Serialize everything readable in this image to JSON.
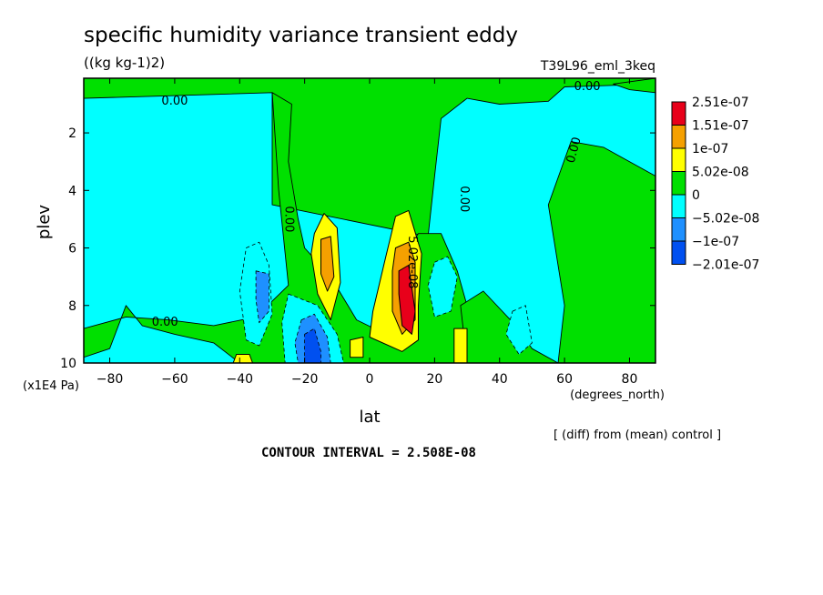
{
  "chart_data": {
    "type": "heatmap",
    "title": "specific humidity variance transient eddy",
    "subtitle": "((kg kg-1)2)",
    "run_label": "T39L96_eml_3keq",
    "xlabel": "lat",
    "xunits": "(degrees_north)",
    "ylabel": "plev",
    "yunits": "(x1E4 Pa)",
    "xlim": [
      -88,
      88
    ],
    "ylim": [
      10,
      0.1
    ],
    "x_ticks": [
      -80,
      -60,
      -40,
      -20,
      0,
      20,
      40,
      60,
      80
    ],
    "y_ticks": [
      2,
      4,
      6,
      8,
      10
    ],
    "x_tick_labels": [
      "−80",
      "−60",
      "−40",
      "−20",
      "0",
      "20",
      "40",
      "60",
      "80"
    ],
    "y_tick_labels": [
      "2",
      "4",
      "6",
      "8",
      "10"
    ],
    "contour_labels": [
      {
        "text": "0.00",
        "x": -60,
        "y": 0.9
      },
      {
        "text": "0.00",
        "x": 67,
        "y": 0.4
      },
      {
        "text": "0.00",
        "x": 63,
        "y": 2.6
      },
      {
        "text": "0.00",
        "x": 29,
        "y": 4.3
      },
      {
        "text": "0.00",
        "x": -25,
        "y": 5.0
      },
      {
        "text": "0.00",
        "x": -63,
        "y": 8.6
      },
      {
        "text": "5.02e-08",
        "x": 13,
        "y": 6.5
      }
    ],
    "legend": {
      "placement": "right",
      "colors": [
        "#e8001a",
        "#f5a000",
        "#ffff00",
        "#00e000",
        "#00ffff",
        "#1e90ff",
        "#0050f0"
      ],
      "labels": [
        "2.51e-07",
        "1.51e-07",
        "1e-07",
        "5.02e-08",
        "0",
        "−5.02e-08",
        "−1e-07",
        "−2.01e-07"
      ]
    },
    "footer_note": "[ (diff) from (mean) control ]",
    "contour_interval": "CONTOUR INTERVAL = 2.508E-08",
    "regions": [
      {
        "level": 0,
        "points": [
          [
            -88,
            10
          ],
          [
            -88,
            0.1
          ],
          [
            88,
            0.1
          ],
          [
            88,
            10
          ]
        ]
      },
      {
        "level": 1,
        "points": [
          [
            -88,
            0.1
          ],
          [
            88,
            0.1
          ],
          [
            88,
            0.3
          ],
          [
            60,
            0.4
          ],
          [
            55,
            0.9
          ],
          [
            40,
            1.0
          ],
          [
            30,
            0.8
          ],
          [
            22,
            1.5
          ],
          [
            20,
            3.5
          ],
          [
            18,
            5.6
          ],
          [
            -30,
            4.5
          ],
          [
            -30,
            0.6
          ],
          [
            -88,
            0.8
          ]
        ]
      },
      {
        "level": 1,
        "points": [
          [
            -30,
            0.6
          ],
          [
            -24,
            1.0
          ],
          [
            -25,
            3.0
          ],
          [
            -22,
            5.0
          ],
          [
            -20,
            6.0
          ],
          [
            -12,
            7.0
          ],
          [
            -4,
            8.5
          ],
          [
            5,
            9.0
          ],
          [
            12,
            8.6
          ],
          [
            12,
            6.0
          ],
          [
            15,
            5.5
          ],
          [
            22,
            5.5
          ],
          [
            27,
            6.8
          ],
          [
            30,
            8.0
          ],
          [
            30,
            10
          ],
          [
            -40,
            10
          ],
          [
            -48,
            9.3
          ],
          [
            -60,
            9.0
          ],
          [
            -70,
            8.7
          ],
          [
            -75,
            8.0
          ],
          [
            -80,
            9.5
          ],
          [
            -88,
            9.8
          ],
          [
            -88,
            8.8
          ],
          [
            -75,
            8.4
          ],
          [
            -62,
            8.5
          ],
          [
            -48,
            8.7
          ],
          [
            -35,
            8.4
          ],
          [
            -25,
            7.3
          ],
          [
            -28,
            4.0
          ],
          [
            -30,
            0.6
          ]
        ]
      },
      {
        "level": 1,
        "points": [
          [
            58,
            10
          ],
          [
            88,
            10
          ],
          [
            88,
            3.5
          ],
          [
            72,
            2.5
          ],
          [
            62,
            2.3
          ],
          [
            55,
            4.5
          ],
          [
            60,
            8.0
          ],
          [
            58,
            10
          ]
        ]
      },
      {
        "level": 1,
        "points": [
          [
            75,
            0.3
          ],
          [
            88,
            0.1
          ],
          [
            88,
            0.6
          ],
          [
            80,
            0.5
          ]
        ]
      },
      {
        "level": 1,
        "points": [
          [
            30,
            10
          ],
          [
            28,
            8.0
          ],
          [
            35,
            7.5
          ],
          [
            45,
            8.7
          ],
          [
            50,
            9.5
          ],
          [
            58,
            10
          ]
        ]
      },
      {
        "level": 2,
        "points": [
          [
            -17,
            5.5
          ],
          [
            -14,
            4.8
          ],
          [
            -10,
            5.3
          ],
          [
            -9,
            7.2
          ],
          [
            -12,
            8.5
          ],
          [
            -16,
            7.6
          ],
          [
            -18,
            6.2
          ]
        ]
      },
      {
        "level": 2,
        "points": [
          [
            8,
            4.9
          ],
          [
            12,
            4.7
          ],
          [
            16,
            6.2
          ],
          [
            15,
            8.0
          ],
          [
            15,
            9.2
          ],
          [
            10,
            9.6
          ],
          [
            0,
            9.1
          ],
          [
            1,
            8.2
          ],
          [
            5,
            6.3
          ]
        ]
      },
      {
        "level": 2,
        "points": [
          [
            26,
            8.8
          ],
          [
            30,
            8.8
          ],
          [
            30,
            10
          ],
          [
            26,
            10
          ]
        ]
      },
      {
        "level": 2,
        "points": [
          [
            -6,
            9.2
          ],
          [
            -2,
            9.1
          ],
          [
            -2,
            9.8
          ],
          [
            -6,
            9.8
          ]
        ]
      },
      {
        "level": 2,
        "points": [
          [
            -41,
            9.7
          ],
          [
            -37,
            9.7
          ],
          [
            -36,
            10
          ],
          [
            -42,
            10
          ]
        ]
      },
      {
        "level": 3,
        "points": [
          [
            -15,
            5.7
          ],
          [
            -12,
            5.6
          ],
          [
            -11,
            7.0
          ],
          [
            -13,
            7.5
          ],
          [
            -15,
            6.9
          ]
        ]
      },
      {
        "level": 3,
        "points": [
          [
            8,
            6.0
          ],
          [
            12,
            5.8
          ],
          [
            14,
            6.5
          ],
          [
            14,
            8.5
          ],
          [
            10,
            9.0
          ],
          [
            7,
            8.2
          ],
          [
            7,
            6.8
          ]
        ]
      },
      {
        "level": 4,
        "points": [
          [
            9,
            6.8
          ],
          [
            12,
            6.6
          ],
          [
            14,
            8.2
          ],
          [
            13,
            9.0
          ],
          [
            10,
            8.7
          ],
          [
            9,
            7.6
          ]
        ]
      },
      {
        "level": -1,
        "points": [
          [
            -38,
            6.0
          ],
          [
            -34,
            5.8
          ],
          [
            -31,
            6.6
          ],
          [
            -30,
            8.3
          ],
          [
            -34,
            9.4
          ],
          [
            -38,
            9.2
          ],
          [
            -40,
            7.5
          ]
        ]
      },
      {
        "level": -1,
        "points": [
          [
            -25,
            7.6
          ],
          [
            -16,
            8.0
          ],
          [
            -10,
            9.0
          ],
          [
            -8,
            10
          ],
          [
            -26,
            10
          ],
          [
            -27,
            8.6
          ]
        ]
      },
      {
        "level": -1,
        "points": [
          [
            20,
            6.5
          ],
          [
            24,
            6.3
          ],
          [
            27,
            7.0
          ],
          [
            25,
            8.2
          ],
          [
            20,
            8.4
          ],
          [
            18,
            7.3
          ]
        ]
      },
      {
        "level": -1,
        "points": [
          [
            44,
            8.2
          ],
          [
            48,
            8.0
          ],
          [
            50,
            9.3
          ],
          [
            46,
            9.7
          ],
          [
            42,
            9.0
          ]
        ]
      },
      {
        "level": -2,
        "points": [
          [
            -35,
            6.8
          ],
          [
            -31,
            6.9
          ],
          [
            -31,
            8.2
          ],
          [
            -34,
            8.6
          ],
          [
            -35,
            7.8
          ]
        ]
      },
      {
        "level": -2,
        "points": [
          [
            -21,
            8.5
          ],
          [
            -17,
            8.3
          ],
          [
            -13,
            9.1
          ],
          [
            -12,
            10
          ],
          [
            -22,
            10
          ],
          [
            -23,
            9.3
          ]
        ]
      },
      {
        "level": -3,
        "points": [
          [
            -20,
            9.0
          ],
          [
            -17,
            8.8
          ],
          [
            -15,
            9.6
          ],
          [
            -15,
            10
          ],
          [
            -20,
            10
          ]
        ]
      }
    ]
  }
}
